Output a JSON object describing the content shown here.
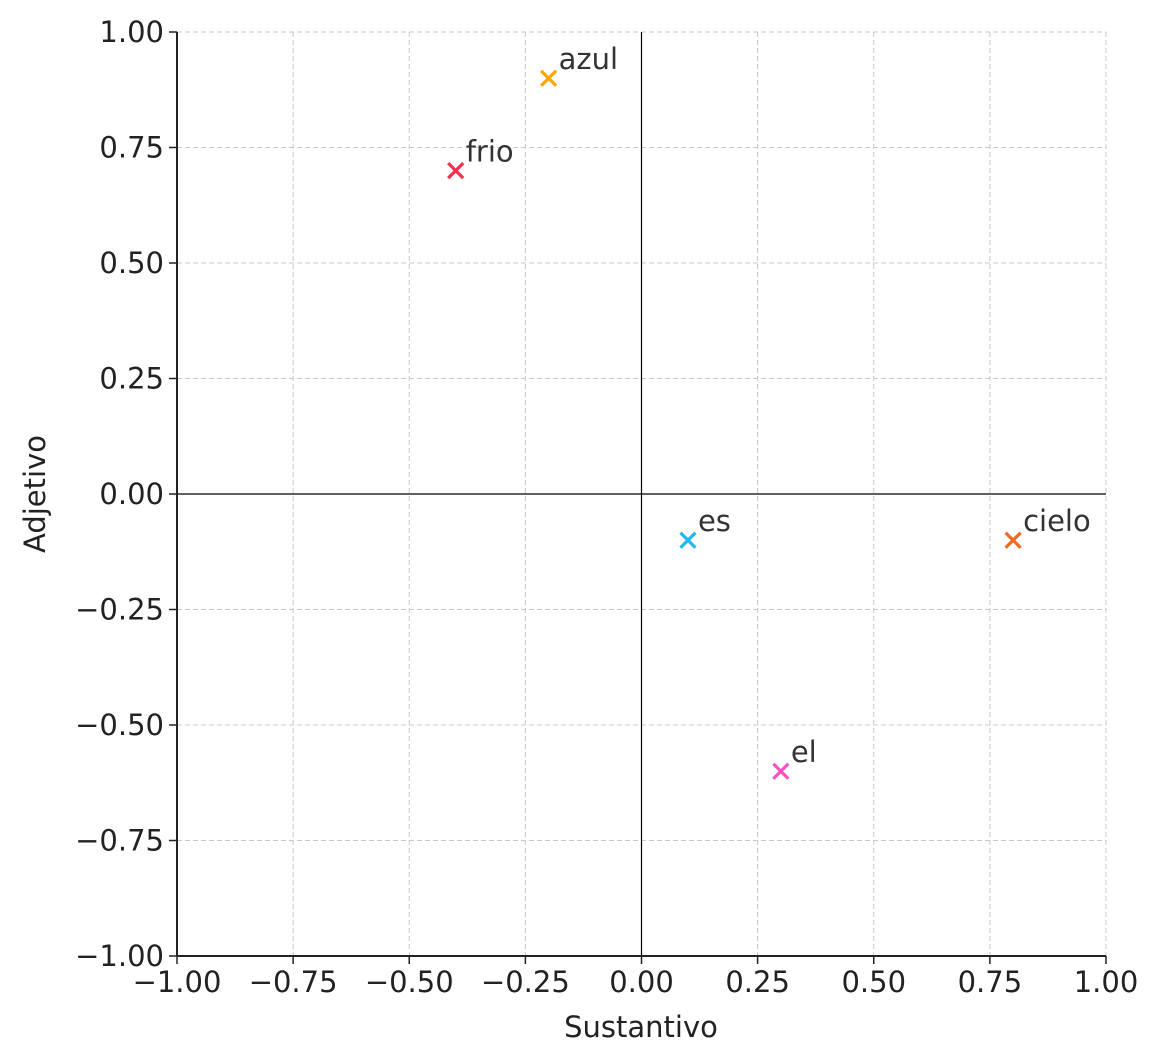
{
  "chart_data": {
    "type": "scatter",
    "title": "",
    "xlabel": "Sustantivo",
    "ylabel": "Adjetivo",
    "xlim": [
      -1,
      1
    ],
    "ylim": [
      -1,
      1
    ],
    "grid": true,
    "grid_style": "dashed",
    "zero_lines": true,
    "marker": "x",
    "xticks": [
      -1.0,
      -0.75,
      -0.5,
      -0.25,
      0.0,
      0.25,
      0.5,
      0.75,
      1.0
    ],
    "yticks": [
      -1.0,
      -0.75,
      -0.5,
      -0.25,
      0.0,
      0.25,
      0.5,
      0.75,
      1.0
    ],
    "xtick_labels": [
      "−1.00",
      "−0.75",
      "−0.50",
      "−0.25",
      "0.00",
      "0.25",
      "0.50",
      "0.75",
      "1.00"
    ],
    "ytick_labels": [
      "−1.00",
      "−0.75",
      "−0.50",
      "−0.25",
      "0.00",
      "0.25",
      "0.50",
      "0.75",
      "1.00"
    ],
    "points": [
      {
        "label": "azul",
        "x": -0.2,
        "y": 0.9,
        "color": "#FFA500"
      },
      {
        "label": "frio",
        "x": -0.4,
        "y": 0.7,
        "color": "#F2304F"
      },
      {
        "label": "es",
        "x": 0.1,
        "y": -0.1,
        "color": "#20B8F5"
      },
      {
        "label": "cielo",
        "x": 0.8,
        "y": -0.1,
        "color": "#F26A22"
      },
      {
        "label": "el",
        "x": 0.3,
        "y": -0.6,
        "color": "#F552C2"
      }
    ]
  }
}
